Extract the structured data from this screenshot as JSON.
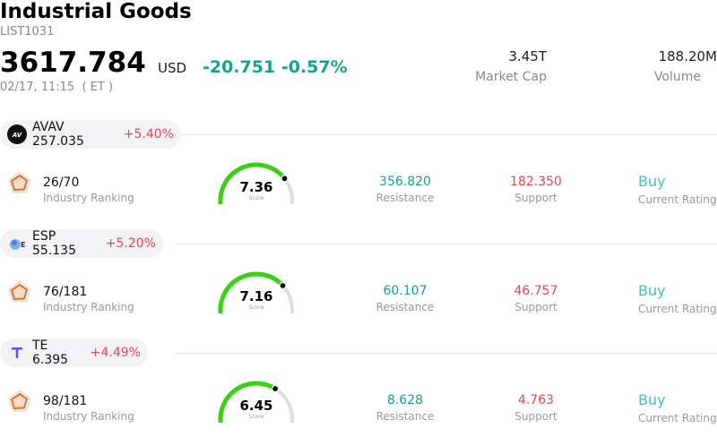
{
  "header": {
    "title": "Industrial Goods",
    "code": "LIST1031",
    "price": "3617.784",
    "currency": "USD",
    "change": "-20.751",
    "change_pct": "-0.57%",
    "timestamp": "02/17, 11:15  ( ET )",
    "market_cap_value": "3.45T",
    "market_cap_label": "Market Cap",
    "volume_value": "188.20M",
    "volume_label": "Volume"
  },
  "colors": {
    "down_green": "#14a38b",
    "up_red": "#e8434f",
    "rating_teal": "#3cc4c0",
    "gauge_green": "#3ccf18",
    "gauge_track": "#dcdde6"
  },
  "stocks": [
    {
      "ticker": "AVAV",
      "price": "257.035",
      "pct": "+5.40%",
      "logo": "avav-logo-icon",
      "rank": "26/70",
      "rank_label": "Industry Ranking",
      "score": "7.36",
      "score_label": "Score",
      "score_value": 7.36,
      "resistance": "356.820",
      "resistance_label": "Resistance",
      "support": "182.350",
      "support_label": "Support",
      "rating": "Buy",
      "rating_label": "Current Rating"
    },
    {
      "ticker": "ESP",
      "price": "55.135",
      "pct": "+5.20%",
      "logo": "esp-logo-icon",
      "rank": "76/181",
      "rank_label": "Industry Ranking",
      "score": "7.16",
      "score_label": "Score",
      "score_value": 7.16,
      "resistance": "60.107",
      "resistance_label": "Resistance",
      "support": "46.757",
      "support_label": "Support",
      "rating": "Buy",
      "rating_label": "Current Rating"
    },
    {
      "ticker": "TE",
      "price": "6.395",
      "pct": "+4.49%",
      "logo": "te-logo-icon",
      "rank": "98/181",
      "rank_label": "Industry Ranking",
      "score": "6.45",
      "score_label": "Score",
      "score_value": 6.45,
      "resistance": "8.628",
      "resistance_label": "Resistance",
      "support": "4.763",
      "support_label": "Support",
      "rating": "Buy",
      "rating_label": "Current Rating"
    }
  ]
}
